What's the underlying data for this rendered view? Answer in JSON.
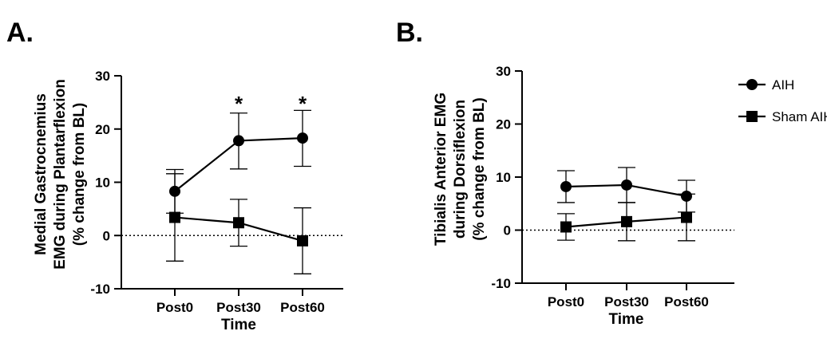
{
  "chart_data": [
    {
      "type": "line",
      "panel_label": "A.",
      "xlabel": "Time",
      "ylabel": [
        "Medial Gastrocnemius",
        "EMG during Plantarflexion",
        "(% change from BL)"
      ],
      "categories": [
        "Post0",
        "Post30",
        "Post60"
      ],
      "ylim": [
        -10,
        30
      ],
      "yticks": [
        -10,
        0,
        10,
        20,
        30
      ],
      "ytick_labels": [
        "-10",
        "0",
        "10",
        "20",
        "30"
      ],
      "reference_line": 0,
      "series": [
        {
          "name": "AIH",
          "marker": "circle",
          "values": [
            8.3,
            17.8,
            18.3
          ],
          "err_low": [
            4.1,
            5.3,
            5.3
          ],
          "err_high": [
            4.1,
            5.2,
            5.2
          ]
        },
        {
          "name": "Sham AIH",
          "marker": "square",
          "values": [
            3.4,
            2.4,
            -1.0
          ],
          "err_low": [
            8.2,
            4.4,
            6.2
          ],
          "err_high": [
            8.2,
            4.4,
            6.2
          ]
        }
      ],
      "annotations": [
        {
          "text": "*",
          "category": "Post30",
          "y": 25.5
        },
        {
          "text": "*",
          "category": "Post60",
          "y": 25.5
        }
      ]
    },
    {
      "type": "line",
      "panel_label": "B.",
      "xlabel": "Time",
      "ylabel": [
        "Tibialis Anterior EMG",
        "during Dorsiflexion",
        "(% change from BL)"
      ],
      "categories": [
        "Post0",
        "Post30",
        "Post60"
      ],
      "ylim": [
        -10,
        30
      ],
      "yticks": [
        -10,
        0,
        10,
        20,
        30
      ],
      "ytick_labels": [
        "-10",
        "0",
        "10",
        "20",
        "30"
      ],
      "reference_line": 0,
      "legend": {
        "position": "top-right",
        "entries": [
          "AIH",
          "Sham AIH"
        ]
      },
      "series": [
        {
          "name": "AIH",
          "marker": "circle",
          "values": [
            8.2,
            8.5,
            6.4
          ],
          "err_low": [
            3.0,
            3.3,
            3.0
          ],
          "err_high": [
            3.0,
            3.3,
            3.0
          ]
        },
        {
          "name": "Sham AIH",
          "marker": "square",
          "values": [
            0.6,
            1.6,
            2.4
          ],
          "err_low": [
            2.5,
            3.6,
            4.4
          ],
          "err_high": [
            2.5,
            3.6,
            4.4
          ]
        }
      ],
      "annotations": []
    }
  ]
}
